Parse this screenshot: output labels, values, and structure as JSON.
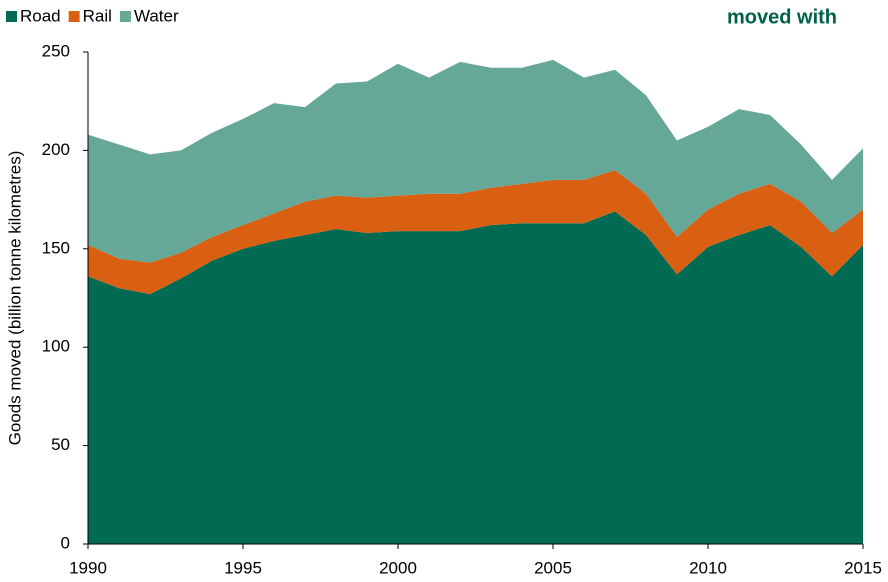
{
  "chart_data": {
    "type": "area",
    "stacked": true,
    "title": "moved with",
    "y_label": "Goods moved  (billion tonne kilometres)",
    "x": [
      1990,
      1991,
      1992,
      1993,
      1994,
      1995,
      1996,
      1997,
      1998,
      1999,
      2000,
      2001,
      2002,
      2003,
      2004,
      2005,
      2006,
      2007,
      2008,
      2009,
      2010,
      2011,
      2012,
      2013,
      2014,
      2015
    ],
    "series": [
      {
        "name": "Road",
        "color": "#006a52",
        "values": [
          136,
          130,
          127,
          135,
          144,
          150,
          154,
          157,
          160,
          158,
          159,
          159,
          159,
          162,
          163,
          163,
          163,
          169,
          157,
          137,
          151,
          157,
          162,
          151,
          136,
          152
        ]
      },
      {
        "name": "Rail",
        "color": "#d95f12",
        "values": [
          16,
          15,
          16,
          13,
          12,
          12,
          14,
          17,
          17,
          18,
          18,
          19,
          19,
          19,
          20,
          22,
          22,
          21,
          21,
          19,
          19,
          21,
          21,
          23,
          22,
          18
        ]
      },
      {
        "name": "Water",
        "color": "#66a898",
        "values": [
          56,
          58,
          55,
          52,
          53,
          54,
          56,
          48,
          57,
          59,
          67,
          59,
          67,
          61,
          59,
          61,
          52,
          51,
          50,
          49,
          42,
          43,
          35,
          29,
          27,
          31
        ]
      }
    ],
    "xlim": [
      1990,
      2015
    ],
    "xticks": [
      1990,
      1995,
      2000,
      2005,
      2010,
      2015
    ],
    "ylim": [
      0,
      250
    ],
    "yticks": [
      0,
      50,
      100,
      150,
      200,
      250
    ],
    "legend": "top-left"
  }
}
